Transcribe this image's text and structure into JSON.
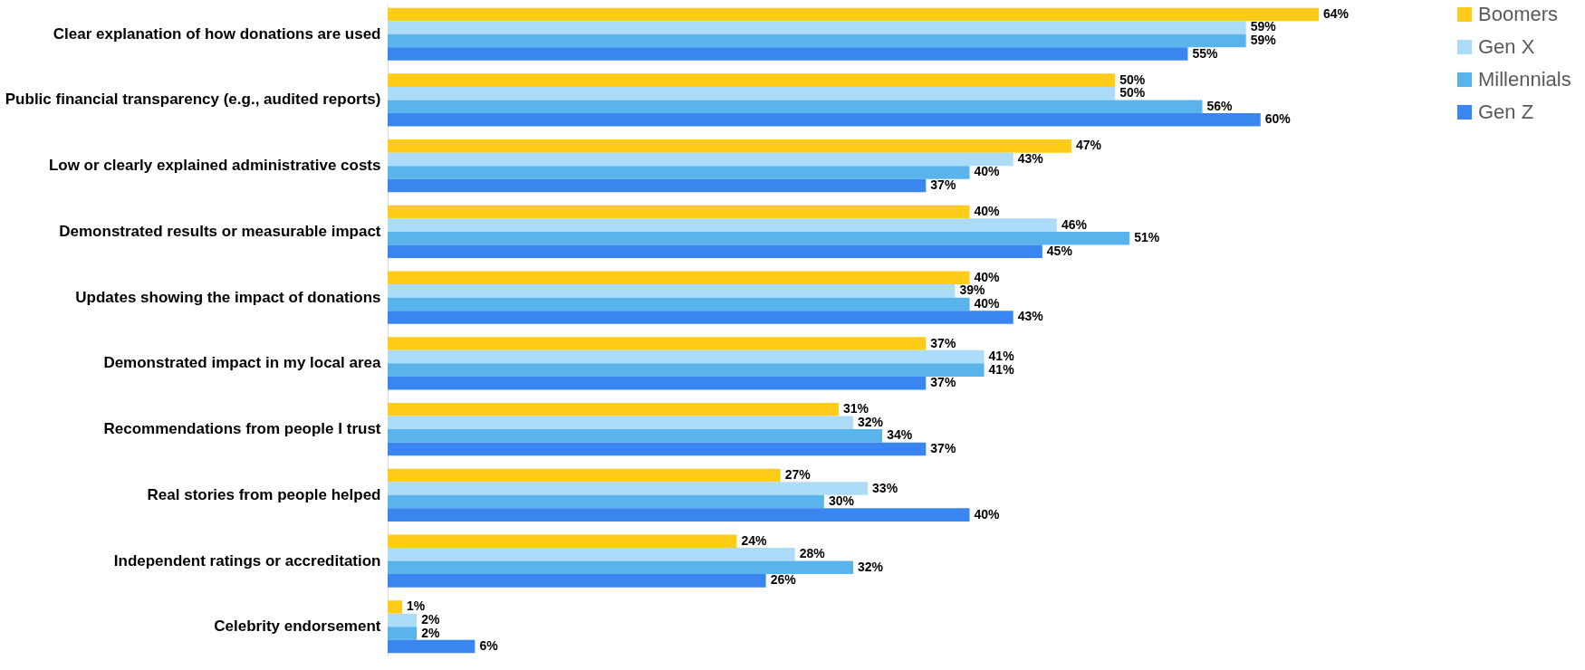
{
  "chart_data": {
    "type": "bar",
    "orientation": "horizontal",
    "data_labels": true,
    "legend": "right",
    "categories": [
      "Clear explanation of how donations are used",
      "Public financial transparency (e.g., audited reports)",
      "Low or clearly explained administrative costs",
      "Demonstrated results or measurable impact",
      "Updates showing the impact of donations",
      "Demonstrated impact in my local area",
      "Recommendations from people I trust",
      "Real stories from people helped",
      "Independent ratings or accreditation",
      "Celebrity endorsement"
    ],
    "series": [
      {
        "name": "Boomers",
        "color": "#ffcc1a",
        "values": [
          64,
          50,
          47,
          40,
          40,
          37,
          31,
          27,
          24,
          1
        ],
        "value_labels": [
          "64%",
          "50%",
          "47%",
          "40%",
          "40%",
          "37%",
          "31%",
          "27%",
          "24%",
          "1%"
        ]
      },
      {
        "name": "Gen X",
        "color": "#acdcf7",
        "values": [
          59,
          50,
          43,
          46,
          39,
          41,
          32,
          33,
          28,
          2
        ],
        "value_labels": [
          "59%",
          "50%",
          "43%",
          "46%",
          "39%",
          "41%",
          "32%",
          "33%",
          "28%",
          "2%"
        ]
      },
      {
        "name": "Millennials",
        "color": "#5ab4ec",
        "values": [
          59,
          56,
          40,
          51,
          40,
          41,
          34,
          30,
          32,
          2
        ],
        "value_labels": [
          "59%",
          "56%",
          "40%",
          "51%",
          "40%",
          "41%",
          "34%",
          "30%",
          "32%",
          "2%"
        ]
      },
      {
        "name": "Gen Z",
        "color": "#3a86f0",
        "values": [
          55,
          60,
          37,
          45,
          43,
          37,
          37,
          40,
          26,
          6
        ],
        "value_labels": [
          "55%",
          "60%",
          "37%",
          "45%",
          "43%",
          "37%",
          "37%",
          "40%",
          "26%",
          "6%"
        ]
      }
    ]
  }
}
